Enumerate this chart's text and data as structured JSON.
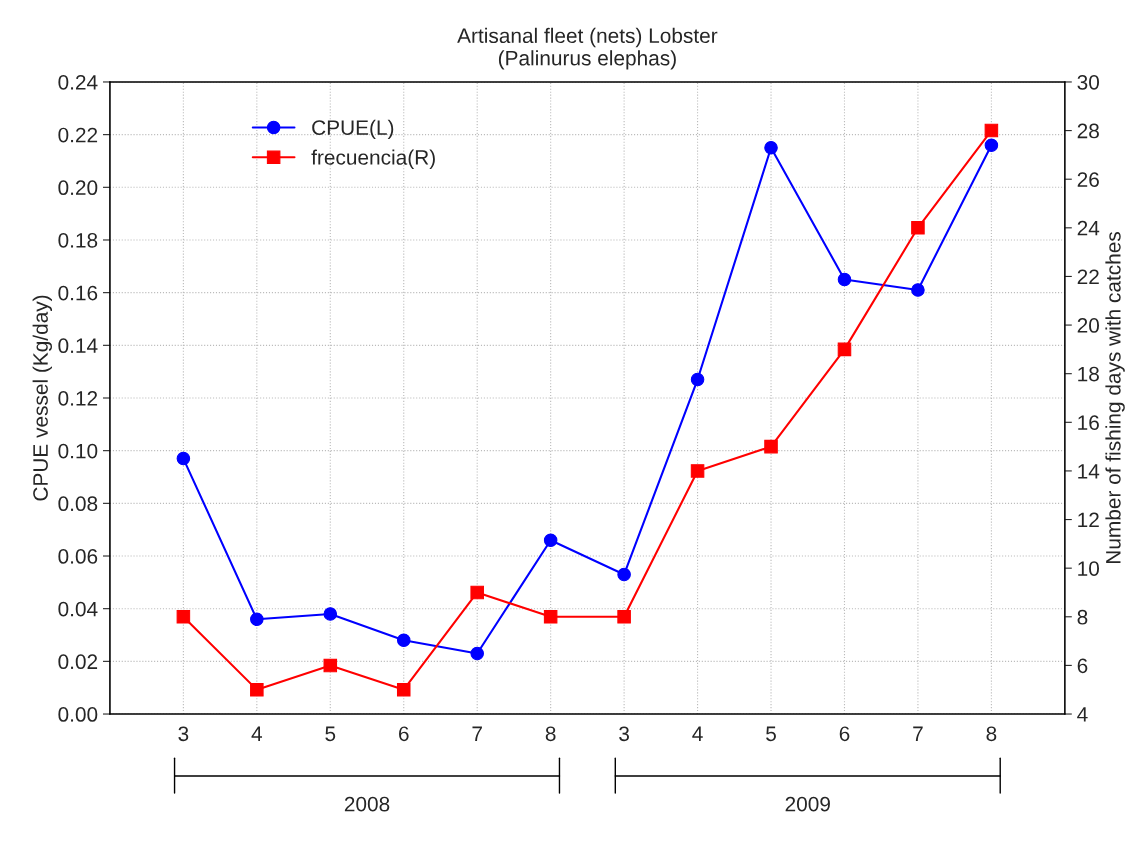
{
  "chart_data": {
    "type": "line",
    "title": "Artisanal fleet (nets) Lobster\n(Palinurus elephas)",
    "ylabel": "CPUE vessel (Kg/day)",
    "y2label": "Number of fishing days with catches",
    "categories": [
      "3",
      "4",
      "5",
      "6",
      "7",
      "8",
      "3",
      "4",
      "5",
      "6",
      "7",
      "8"
    ],
    "series": [
      {
        "name": "CPUE(L)",
        "color": "#0000ff",
        "marker": "circle",
        "values": [
          0.097,
          0.036,
          0.038,
          0.028,
          0.023,
          0.066,
          0.053,
          0.127,
          0.215,
          0.165,
          0.161,
          0.216
        ]
      },
      {
        "name": "frecuencia(R)",
        "color": "#ff0000",
        "marker": "square",
        "axis": "y2",
        "values": [
          8,
          5,
          6,
          5,
          9,
          8,
          8,
          14,
          15,
          19,
          24,
          28
        ]
      }
    ],
    "ylim": [
      0,
      0.24
    ],
    "yticks": [
      {
        "value": 0,
        "label": "0.00"
      },
      {
        "value": 0.02,
        "label": "0.02"
      },
      {
        "value": 0.04,
        "label": "0.04"
      },
      {
        "value": 0.06,
        "label": "0.06"
      },
      {
        "value": 0.08,
        "label": "0.08"
      },
      {
        "value": 0.1,
        "label": "0.10"
      },
      {
        "value": 0.12,
        "label": "0.12"
      },
      {
        "value": 0.14,
        "label": "0.14"
      },
      {
        "value": 0.16,
        "label": "0.16"
      },
      {
        "value": 0.18,
        "label": "0.18"
      },
      {
        "value": 0.2,
        "label": "0.20"
      },
      {
        "value": 0.22,
        "label": "0.22"
      },
      {
        "value": 0.24,
        "label": "0.24"
      }
    ],
    "y2lim": [
      4,
      30
    ],
    "y2ticks": [
      4,
      6,
      8,
      10,
      12,
      14,
      16,
      18,
      20,
      22,
      24,
      26,
      28,
      30
    ],
    "grid": true,
    "legend": "top left",
    "line_style": "solid",
    "annotations": [
      "2008",
      "2009"
    ]
  }
}
